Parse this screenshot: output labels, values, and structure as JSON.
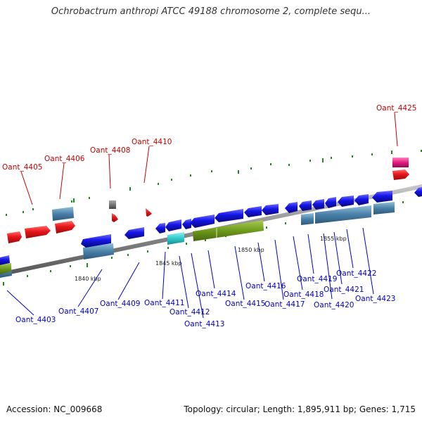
{
  "title": "Ochrobactrum anthropi ATCC 49188 chromosome 2, complete sequ...",
  "footer": {
    "accession": "Accession: NC_009668",
    "summary": "Topology: circular; Length: 1,895,911 bp; Genes: 1,715"
  },
  "colors": {
    "backbone": "#8c8c8c",
    "forward_gene": "#e8151a",
    "reverse_gene": "#1414e6",
    "rna": "#46787f",
    "pseudo": "#777777",
    "cyan_feature": "#2ec9cc",
    "green_feature": "#6e9a1c",
    "pink_feature": "#e6197f",
    "label_top": "#cc0000",
    "label_bottom": "#0000cc"
  },
  "ticks": [
    "1840 kbp",
    "1845 kbp",
    "1850 kbp",
    "1855 kbp"
  ],
  "labels_top": [
    "Oant_4405",
    "Oant_4406",
    "Oant_4408",
    "Oant_4410",
    "Oant_4425"
  ],
  "labels_bottom": [
    "Oant_4403",
    "Oant_4407",
    "Oant_4409",
    "Oant_4411",
    "Oant_4412",
    "Oant_4413",
    "Oant_4414",
    "Oant_4415",
    "Oant_4416",
    "Oant_4417",
    "Oant_4418",
    "Oant_4419",
    "Oant_4420",
    "Oant_4421",
    "Oant_4422",
    "Oant_4423"
  ]
}
